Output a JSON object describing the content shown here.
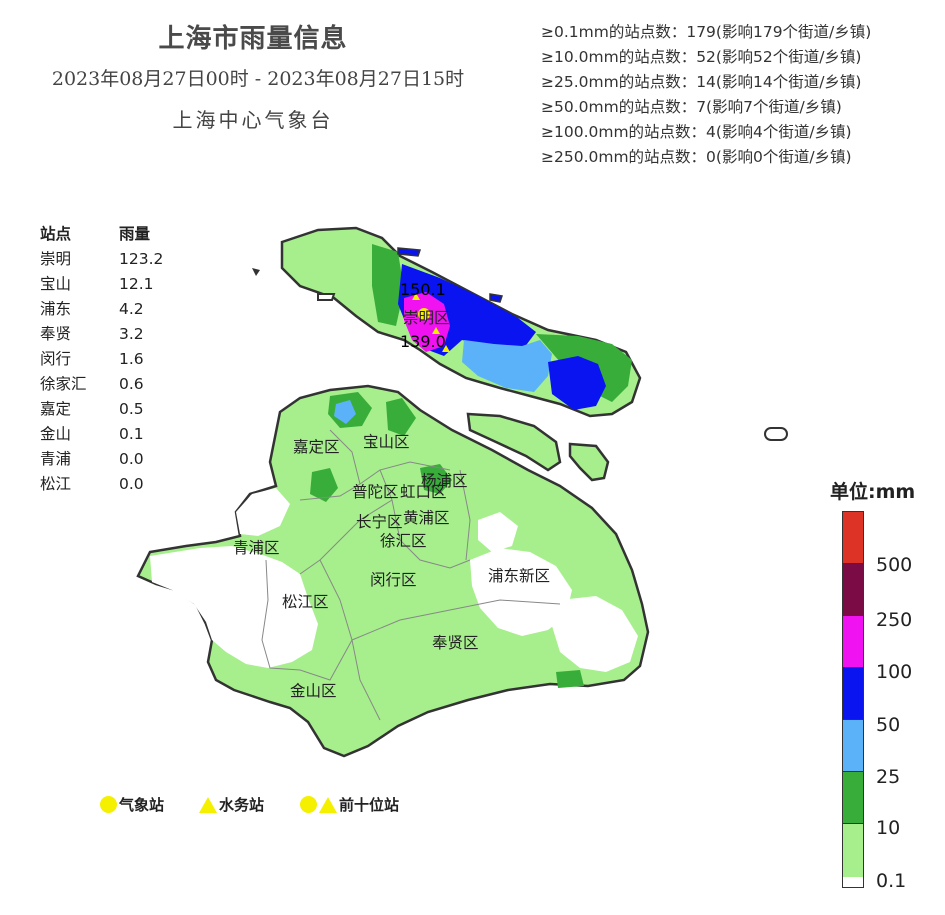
{
  "header": {
    "title": "上海市雨量信息",
    "period": "2023年08月27日00时 - 2023年08月27日15时",
    "org": "上海中心气象台"
  },
  "stats": [
    "≥0.1mm的站点数：179(影响179个街道/乡镇)",
    "≥10.0mm的站点数：52(影响52个街道/乡镇)",
    "≥25.0mm的站点数：14(影响14个街道/乡镇)",
    "≥50.0mm的站点数：7(影响7个街道/乡镇)",
    "≥100.0mm的站点数：4(影响4个街道/乡镇)",
    "≥250.0mm的站点数：0(影响0个街道/乡镇)"
  ],
  "station_table": {
    "col_station": "站点",
    "col_rain": "雨量",
    "rows": [
      {
        "name": "崇明",
        "value": "123.2"
      },
      {
        "name": "宝山",
        "value": "12.1"
      },
      {
        "name": "浦东",
        "value": "4.2"
      },
      {
        "name": "奉贤",
        "value": "3.2"
      },
      {
        "name": "闵行",
        "value": "1.6"
      },
      {
        "name": "徐家汇",
        "value": "0.6"
      },
      {
        "name": "嘉定",
        "value": "0.5"
      },
      {
        "name": "金山",
        "value": "0.1"
      },
      {
        "name": "青浦",
        "value": "0.0"
      },
      {
        "name": "松江",
        "value": "0.0"
      }
    ]
  },
  "map": {
    "district_labels": [
      "崇明区",
      "嘉定区",
      "宝山区",
      "普陀区",
      "虹口区",
      "杨浦区",
      "长宁区",
      "黄浦区",
      "徐汇区",
      "青浦区",
      "闵行区",
      "浦东新区",
      "松江区",
      "奉贤区",
      "金山区"
    ],
    "peak_values": [
      "150.1",
      "139.0"
    ]
  },
  "legend": {
    "title": "单位:mm",
    "ticks": [
      "500",
      "250",
      "100",
      "50",
      "25",
      "10",
      "0.1"
    ],
    "colors": [
      "#dd3326",
      "#7a0b45",
      "#f012f0",
      "#0a14f0",
      "#5cb2f8",
      "#38ad3a",
      "#a6ef8c"
    ]
  },
  "markers": {
    "weather_station": "气象站",
    "water_station": "水务站",
    "top_ten": "前十位站"
  }
}
